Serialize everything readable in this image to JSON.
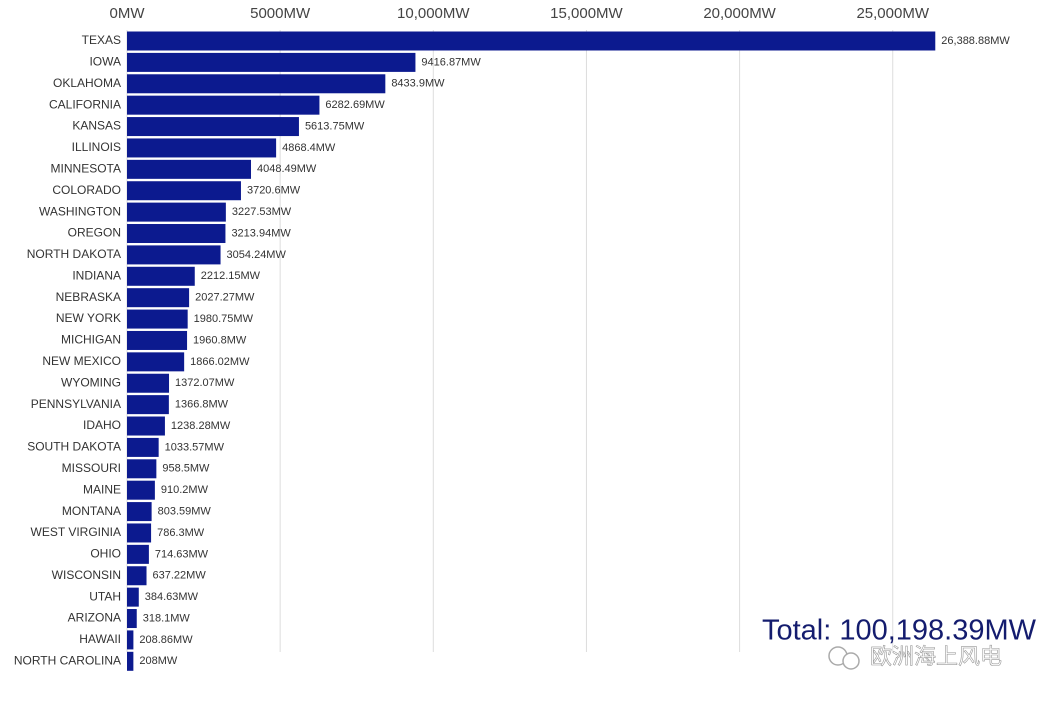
{
  "chart_data": {
    "type": "bar",
    "orientation": "horizontal",
    "color": "#0c1a8f",
    "categories": [
      "TEXAS",
      "IOWA",
      "OKLAHOMA",
      "CALIFORNIA",
      "KANSAS",
      "ILLINOIS",
      "MINNESOTA",
      "COLORADO",
      "WASHINGTON",
      "OREGON",
      "NORTH DAKOTA",
      "INDIANA",
      "NEBRASKA",
      "NEW YORK",
      "MICHIGAN",
      "NEW MEXICO",
      "WYOMING",
      "PENNSYLVANIA",
      "IDAHO",
      "SOUTH DAKOTA",
      "MISSOURI",
      "MAINE",
      "MONTANA",
      "WEST VIRGINIA",
      "OHIO",
      "WISCONSIN",
      "UTAH",
      "ARIZONA",
      "HAWAII",
      "NORTH CAROLINA"
    ],
    "values": [
      26388.88,
      9416.87,
      8433.9,
      6282.69,
      5613.75,
      4868.4,
      4048.49,
      3720.6,
      3227.53,
      3213.94,
      3054.24,
      2212.15,
      2027.27,
      1980.75,
      1960.8,
      1866.02,
      1372.07,
      1366.8,
      1238.28,
      1033.57,
      958.5,
      910.2,
      803.59,
      786.3,
      714.63,
      637.22,
      384.63,
      318.1,
      208.86,
      208
    ],
    "value_labels": [
      "26,388.88MW",
      "9416.87MW",
      "8433.9MW",
      "6282.69MW",
      "5613.75MW",
      "4868.4MW",
      "4048.49MW",
      "3720.6MW",
      "3227.53MW",
      "3213.94MW",
      "3054.24MW",
      "2212.15MW",
      "2027.27MW",
      "1980.75MW",
      "1960.8MW",
      "1866.02MW",
      "1372.07MW",
      "1366.8MW",
      "1238.28MW",
      "1033.57MW",
      "958.5MW",
      "910.2MW",
      "803.59MW",
      "786.3MW",
      "714.63MW",
      "637.22MW",
      "384.63MW",
      "318.1MW",
      "208.86MW",
      "208MW"
    ],
    "xlim": [
      0,
      27000
    ],
    "xticks": [
      {
        "value": 0,
        "label": "0MW"
      },
      {
        "value": 5000,
        "label": "5000MW"
      },
      {
        "value": 10000,
        "label": "10,000MW"
      },
      {
        "value": 15000,
        "label": "15,000MW"
      },
      {
        "value": 20000,
        "label": "20,000MW"
      },
      {
        "value": 25000,
        "label": "25,000MW"
      }
    ],
    "grid": true,
    "total_label": "Total: 100,198.39MW",
    "watermark": "欧洲海上风电"
  }
}
